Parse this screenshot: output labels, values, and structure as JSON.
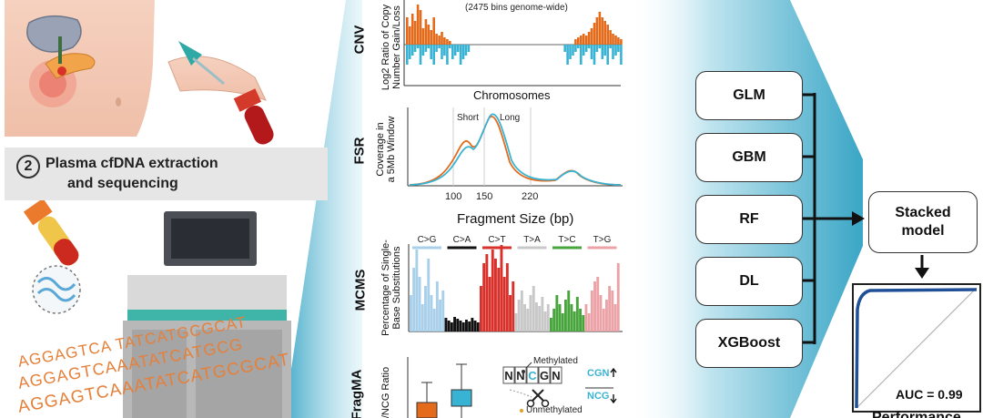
{
  "step2": {
    "number": "2",
    "line1": "Plasma cfDNA extraction",
    "line2": "and sequencing"
  },
  "sequences": {
    "line1": "AGGAGTCA TATCATGCGCAT",
    "line2": "AGGAGTCAAATATCATGCG",
    "line3": "AGGAGTCAAATATCATGCGCAT"
  },
  "cnv": {
    "label": "CNV",
    "ylabel1": "Log2 Ratio of Copy",
    "ylabel2": "Number Gain/Loss",
    "note": "(2475 bins genome-wide)",
    "xlabel": "Chromosomes"
  },
  "fsr": {
    "label": "FSR",
    "ylabel1": "Coverage in",
    "ylabel2": "a 5Mb Window",
    "short": "Short",
    "long": "Long",
    "xlabel": "Fragment Size (bp)",
    "ticks": [
      "100",
      "150",
      "220"
    ]
  },
  "mcms": {
    "label": "MCMS",
    "ylabel1": "Percentage of Single-",
    "ylabel2": "Base Substitutions",
    "categories": [
      "C>G",
      "C>A",
      "C>T",
      "T>A",
      "T>C",
      "T>G"
    ]
  },
  "fragma": {
    "label": "FragMA",
    "ylabel": "/NCG Ratio",
    "motif": [
      "N",
      "N",
      "C",
      "G",
      "N"
    ],
    "methylated": "Methylated",
    "unmethylated": "Unmethylated",
    "cgn": "CGN",
    "ncg": "NCG"
  },
  "models": [
    "GLM",
    "GBM",
    "RF",
    "DL",
    "XGBoost"
  ],
  "stacked": {
    "line1": "Stacked",
    "line2": "model"
  },
  "roc": {
    "auc": "AUC = 0.99",
    "footer": "Performance"
  },
  "colors": {
    "teal": "#3aa6c6",
    "orange": "#e36b1b",
    "cyan": "#39b3d4",
    "red": "#d8302a",
    "green": "#47a53c",
    "pink": "#eba3a8",
    "lightblue": "#a9d0ea",
    "gray": "#c8c8c8",
    "navy": "#1f4f96"
  }
}
